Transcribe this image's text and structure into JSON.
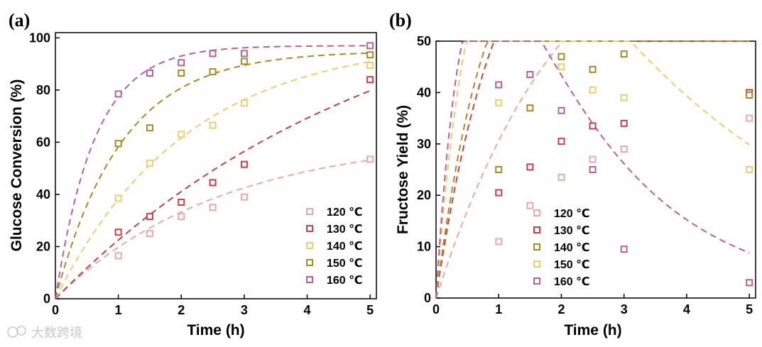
{
  "watermark": "大数跨境",
  "chart_data": [
    {
      "panel_label": "(a)",
      "type": "scatter",
      "xlabel": "Time (h)",
      "ylabel": "Glucose Conversion (%)",
      "xlim": [
        0,
        5.1
      ],
      "ylim": [
        0,
        102
      ],
      "xticks": [
        0,
        1,
        2,
        3,
        4,
        5
      ],
      "yticks": [
        0,
        20,
        40,
        60,
        80,
        100
      ],
      "legend_position": "bottom-right",
      "series": [
        {
          "name": "120 ℃",
          "color": "#f0a8a4",
          "x": [
            1,
            1.5,
            2,
            2.5,
            3,
            5
          ],
          "values": [
            16.5,
            25,
            31.5,
            35,
            39,
            53.5
          ],
          "fit": "first-order",
          "fit_params": [
            62.5,
            0.38
          ]
        },
        {
          "name": "130 ℃",
          "color": "#cc4040",
          "x": [
            1,
            1.5,
            2,
            2.5,
            3,
            5
          ],
          "values": [
            25.5,
            31.5,
            37,
            44.5,
            51.5,
            84
          ],
          "fit": "first-order",
          "fit_params": [
            130,
            0.19
          ]
        },
        {
          "name": "140 ℃",
          "color": "#f0cc70",
          "x": [
            1,
            1.5,
            2,
            2.5,
            3,
            5
          ],
          "values": [
            38.5,
            52,
            63,
            66.5,
            75,
            89.5
          ],
          "fit": "first-order",
          "fit_params": [
            100,
            0.48
          ]
        },
        {
          "name": "150 ℃",
          "color": "#a88a28",
          "x": [
            1,
            1.5,
            2,
            2.5,
            3,
            5
          ],
          "values": [
            59.5,
            65.5,
            86.5,
            87,
            91,
            93.5
          ],
          "fit": "first-order",
          "fit_params": [
            95,
            0.95
          ]
        },
        {
          "name": "160 ℃",
          "color": "#b8609a",
          "x": [
            1,
            1.5,
            2,
            2.5,
            3,
            5
          ],
          "values": [
            78.5,
            86.5,
            90.5,
            94,
            94,
            97
          ],
          "fit": "first-order",
          "fit_params": [
            97,
            1.6
          ]
        }
      ]
    },
    {
      "panel_label": "(b)",
      "type": "scatter",
      "xlabel": "Time (h)",
      "ylabel": "Fructose Yield (%)",
      "xlim": [
        0,
        5.1
      ],
      "ylim": [
        0,
        50
      ],
      "xticks": [
        0,
        1,
        2,
        3,
        4,
        5
      ],
      "yticks": [
        0,
        10,
        20,
        30,
        40,
        50
      ],
      "legend_position": "bottom-center",
      "series": [
        {
          "name": "120 ℃",
          "color": "#f0a8a4",
          "x": [
            1,
            1.5,
            2,
            2.5,
            3,
            5
          ],
          "values": [
            11,
            18,
            23.5,
            27,
            29,
            35
          ],
          "fit": "consecutive",
          "fit_params": [
            0.38,
            0.06
          ]
        },
        {
          "name": "130 ℃",
          "color": "#cc4040",
          "x": [
            1,
            1.5,
            2,
            2.5,
            3,
            5
          ],
          "values": [
            20.5,
            25.5,
            30.5,
            33.5,
            34,
            40
          ],
          "fit": "consecutive",
          "fit_params": [
            0.82,
            0.12
          ]
        },
        {
          "name": "140 ℃",
          "color": "#a88a28",
          "x": [
            1,
            1.5,
            2,
            2.5,
            3,
            5
          ],
          "values": [
            25,
            37,
            47,
            44.5,
            47.5,
            39.5
          ],
          "fit": "consecutive",
          "fit_params": [
            0.95,
            0.17
          ]
        },
        {
          "name": "150 ℃",
          "color": "#f0cc70",
          "x": [
            1,
            1.5,
            2,
            2.5,
            3,
            5
          ],
          "values": [
            38,
            43.5,
            45,
            40.5,
            39,
            25
          ],
          "fit": "consecutive",
          "fit_params": [
            1.6,
            0.28
          ]
        },
        {
          "name": "160 ℃",
          "color": "#b8609a",
          "x": [
            1,
            1.5,
            2,
            2.5,
            3,
            5
          ],
          "values": [
            41.5,
            43.5,
            36.5,
            25,
            9.5,
            3
          ],
          "fit": "consecutive",
          "fit_params": [
            2.0,
            0.55
          ]
        }
      ]
    }
  ]
}
